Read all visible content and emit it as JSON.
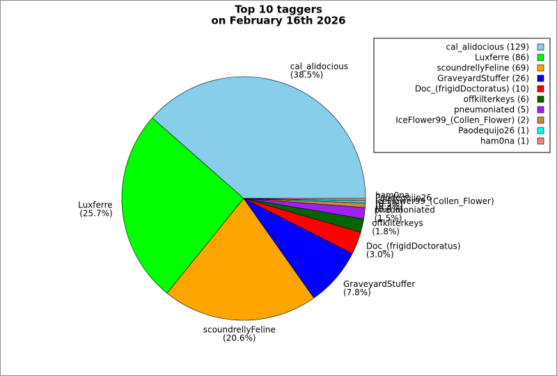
{
  "chart_data": {
    "type": "pie",
    "title": [
      "Top 10 taggers",
      "on February 16th 2026"
    ],
    "categories": [
      "cal_alidocious",
      "Luxferre",
      "scoundrellyFeline",
      "GraveyardStuffer",
      "Doc_(frigidDoctoratus)",
      "offkilterkeys",
      "pneumoniated",
      "IceFlower99_(Collen_Flower)",
      "Paodequijo26",
      "ham0na"
    ],
    "values": [
      129,
      86,
      69,
      26,
      10,
      6,
      5,
      2,
      1,
      1
    ],
    "percent_labels": [
      "(38.5%)",
      "(25.7%)",
      "(20.6%)",
      "(7.8%)",
      "(3.0%)",
      "(1.8%)",
      "(1.5%)",
      "(0.6%)",
      "(0.3%)",
      "(0.3%)"
    ],
    "legend_labels": [
      "cal_alidocious (129)",
      "Luxferre (86)",
      "scoundrellyFeline (69)",
      "GraveyardStuffer (26)",
      "Doc_(frigidDoctoratus) (10)",
      "offkilterkeys (6)",
      "pneumoniated (5)",
      "IceFlower99_(Collen_Flower) (2)",
      "Paodequijo26 (1)",
      "ham0na (1)"
    ],
    "colors": [
      "#87ceeb",
      "#00ff00",
      "#ffa500",
      "#0000ff",
      "#ff0000",
      "#006400",
      "#a020f0",
      "#cd853f",
      "#00ffff",
      "#fa8072"
    ],
    "legend": "upper right"
  }
}
